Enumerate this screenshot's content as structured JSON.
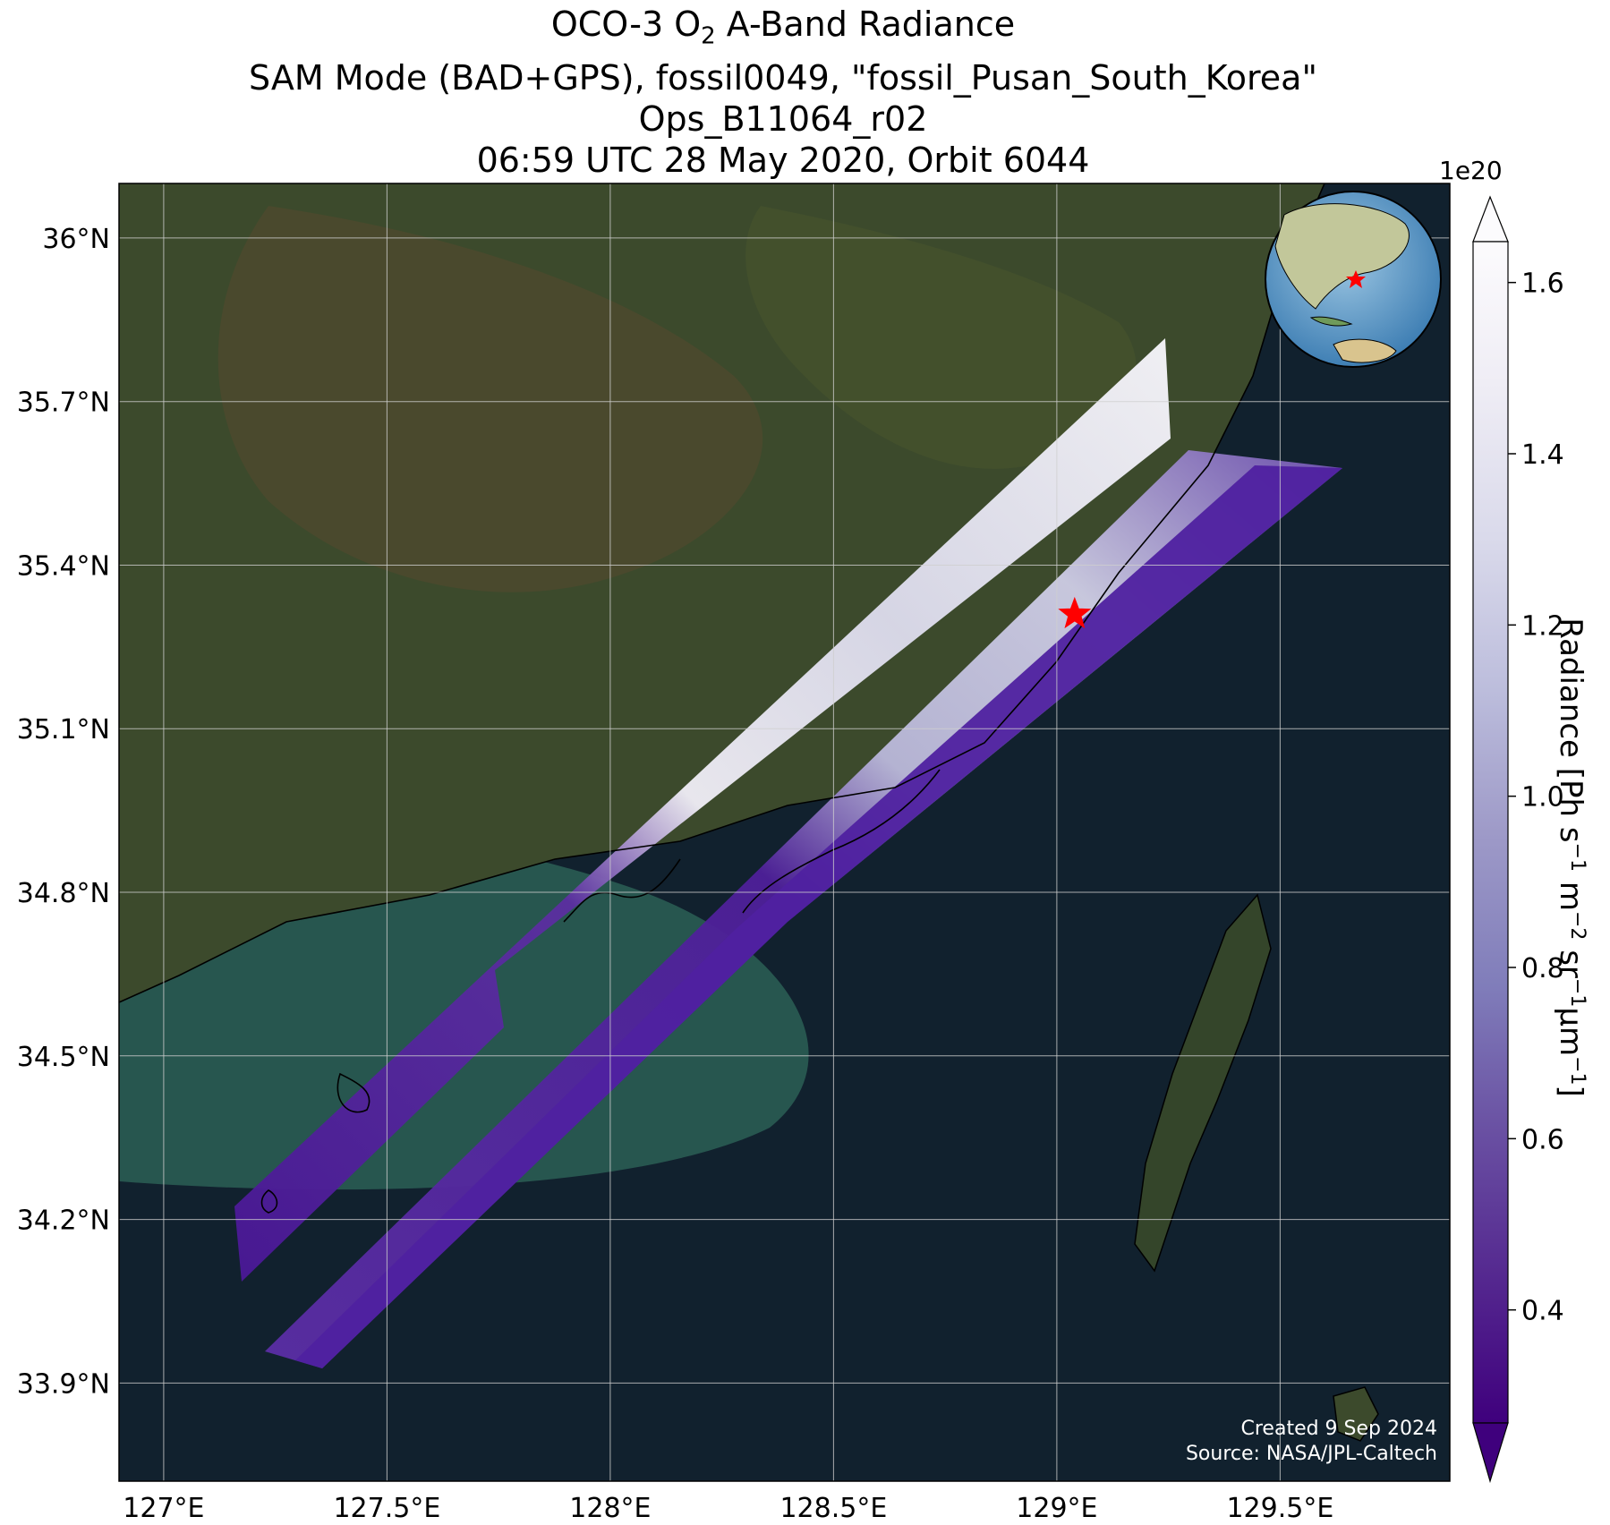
{
  "title": {
    "line1_prefix": "OCO-3 O",
    "line1_sub": "2",
    "line1_suffix": " A-Band Radiance",
    "line2": "SAM Mode (BAD+GPS), fossil0049, \"fossil_Pusan_South_Korea\"",
    "line3": "Ops_B11064_r02",
    "line4": "06:59 UTC 28 May 2020, Orbit 6044"
  },
  "map": {
    "lat_ticks": [
      "36°N",
      "35.7°N",
      "35.4°N",
      "35.1°N",
      "34.8°N",
      "34.5°N",
      "34.2°N",
      "33.9°N"
    ],
    "lon_ticks": [
      "127°E",
      "127.5°E",
      "128°E",
      "128.5°E",
      "129°E",
      "129.5°E"
    ],
    "lat_range": [
      33.72,
      36.1
    ],
    "lon_range": [
      126.9,
      129.88
    ],
    "target_marker": {
      "lon": 129.04,
      "lat": 35.31,
      "color": "#ff0000"
    },
    "colors": {
      "sea": "#11212e",
      "sea_shallow": "#2c5f55",
      "land": "#3c4a2c",
      "grid": "#cfcfcf",
      "coast": "#000000"
    }
  },
  "colorbar": {
    "exponent": "1e20",
    "label_prefix": "Radiance [Ph s",
    "ticks": [
      "1.6",
      "1.4",
      "1.2",
      "1.0",
      "0.8",
      "0.6",
      "0.4"
    ],
    "tick_values": [
      1.6,
      1.4,
      1.2,
      1.0,
      0.8,
      0.6,
      0.4
    ],
    "range": [
      0.2,
      1.7
    ],
    "colormap": [
      "#3f007d",
      "#54278f",
      "#6a51a3",
      "#807dba",
      "#9e9ac8",
      "#bcbddc",
      "#dadaeb",
      "#efedf5",
      "#fcfbfd"
    ]
  },
  "credit": {
    "line1": "Created 9 Sep 2024",
    "line2": "Source: NASA/JPL-Caltech"
  },
  "inset": {
    "marker_color": "#ff0000"
  }
}
